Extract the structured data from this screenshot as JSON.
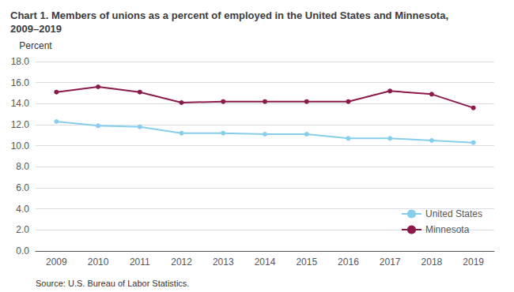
{
  "chart_data": {
    "type": "line",
    "title": "Chart 1. Members of unions as a percent of employed in the United States and Minnesota, 2009–2019",
    "y_label": "Percent",
    "annotations": [
      "Source: U.S. Bureau of Labor Statistics."
    ],
    "categories": [
      "2009",
      "2010",
      "2011",
      "2012",
      "2013",
      "2014",
      "2015",
      "2016",
      "2017",
      "2018",
      "2019"
    ],
    "series": [
      {
        "name": "United States",
        "color": "#87CEEB",
        "marker": "circle",
        "values": [
          12.3,
          11.9,
          11.8,
          11.2,
          11.2,
          11.1,
          11.1,
          10.7,
          10.7,
          10.5,
          10.3
        ]
      },
      {
        "name": "Minnesota",
        "color": "#8B1A4A",
        "marker": "circle",
        "values": [
          15.1,
          15.6,
          15.1,
          14.1,
          14.2,
          14.2,
          14.2,
          14.2,
          15.2,
          14.9,
          13.6
        ]
      }
    ],
    "ylim": [
      0,
      18
    ],
    "yticks": [
      {
        "value": 0,
        "label": "0.0"
      },
      {
        "value": 2,
        "label": "2.0"
      },
      {
        "value": 4,
        "label": "4.0"
      },
      {
        "value": 6,
        "label": "6.0"
      },
      {
        "value": 8,
        "label": "8.0"
      },
      {
        "value": 10,
        "label": "10.0"
      },
      {
        "value": 12,
        "label": "12.0"
      },
      {
        "value": 14,
        "label": "14.0"
      },
      {
        "value": 16,
        "label": "16.0"
      },
      {
        "value": 18,
        "label": "18.0"
      }
    ],
    "grid": true,
    "legend": "lower right"
  }
}
